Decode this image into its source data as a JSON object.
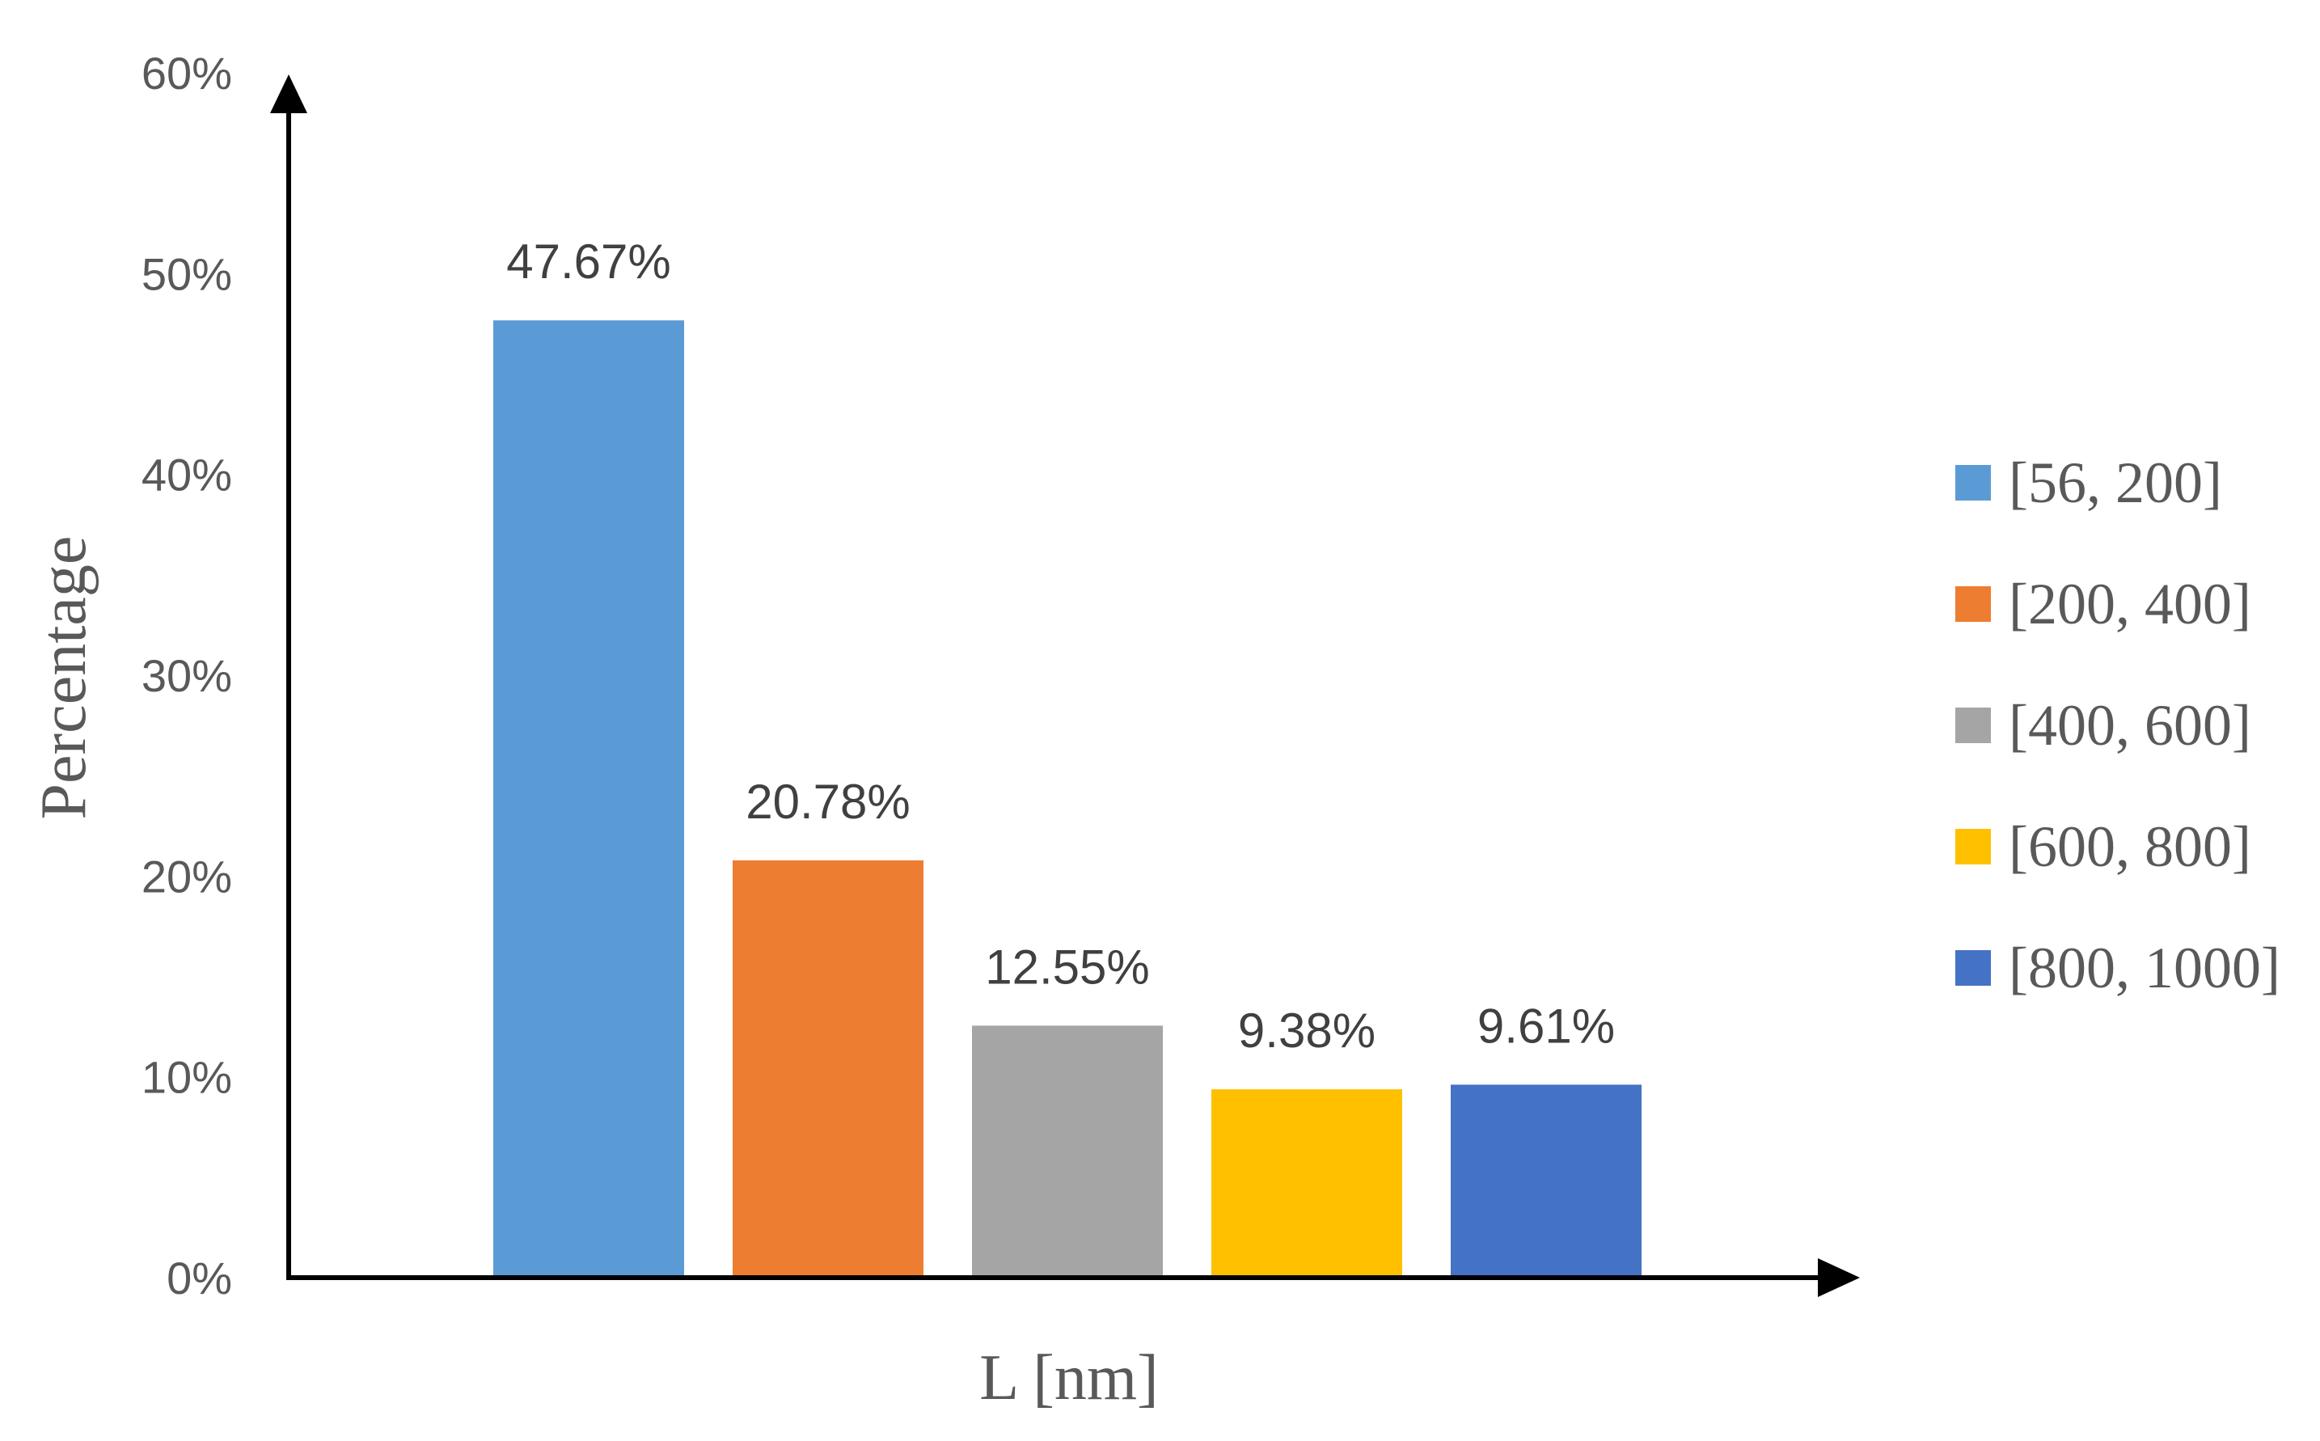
{
  "chart_data": {
    "type": "bar",
    "categories": [
      "[56, 200]",
      "[200, 400]",
      "[400, 600]",
      "[600, 800]",
      "[800, 1000]"
    ],
    "values": [
      47.67,
      20.78,
      12.55,
      9.38,
      9.61
    ],
    "data_labels": [
      "47.67%",
      "20.78%",
      "12.55%",
      "9.38%",
      "9.61%"
    ],
    "colors": [
      "#5B9BD5",
      "#ED7D31",
      "#A5A5A5",
      "#FFC000",
      "#4472C4"
    ],
    "xlabel": "L [nm]",
    "ylabel": "Percentage",
    "ylim": [
      0,
      60
    ],
    "y_ticks": [
      0,
      10,
      20,
      30,
      40,
      50,
      60
    ],
    "y_tick_labels": [
      "0%",
      "10%",
      "20%",
      "30%",
      "40%",
      "50%",
      "60%"
    ],
    "grid": false,
    "legend": {
      "position": "right",
      "entries": [
        "[56, 200]",
        "[200, 400]",
        "[400, 600]",
        "[600, 800]",
        "[800, 1000]"
      ]
    }
  }
}
